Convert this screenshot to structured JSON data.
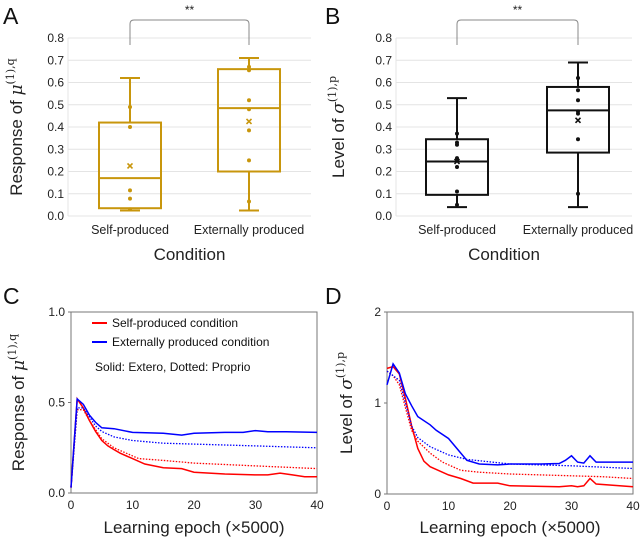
{
  "chart_data": [
    {
      "panel": "A",
      "type": "box",
      "ylabel": "Response of μ(1),q",
      "xlabel": "Condition",
      "ylim": [
        0,
        0.8
      ],
      "yticks": [
        "0.0",
        "0.1",
        "0.2",
        "0.3",
        "0.4",
        "0.5",
        "0.6",
        "0.7",
        "0.8"
      ],
      "grid": true,
      "color": "#c8960c",
      "significance": "**",
      "categories": [
        "Self-produced",
        "Externally produced"
      ],
      "boxes": [
        {
          "whisker_low": 0.025,
          "q1": 0.035,
          "median": 0.17,
          "q3": 0.42,
          "whisker_high": 0.62,
          "mean": 0.225,
          "points": [
            0.49,
            0.4,
            0.115,
            0.078,
            0.03
          ]
        },
        {
          "whisker_low": 0.025,
          "q1": 0.2,
          "median": 0.485,
          "q3": 0.66,
          "whisker_high": 0.71,
          "mean": 0.425,
          "points": [
            0.67,
            0.655,
            0.52,
            0.48,
            0.385,
            0.25,
            0.065
          ]
        }
      ]
    },
    {
      "panel": "B",
      "type": "box",
      "ylabel": "Level of σ(1),p",
      "xlabel": "Condition",
      "ylim": [
        0,
        0.8
      ],
      "yticks": [
        "0.0",
        "0.1",
        "0.2",
        "0.3",
        "0.4",
        "0.5",
        "0.6",
        "0.7",
        "0.8"
      ],
      "grid": true,
      "color": "#111111",
      "significance": "**",
      "categories": [
        "Self-produced",
        "Externally produced"
      ],
      "boxes": [
        {
          "whisker_low": 0.04,
          "q1": 0.095,
          "median": 0.245,
          "q3": 0.345,
          "whisker_high": 0.53,
          "mean": 0.245,
          "points": [
            0.37,
            0.33,
            0.32,
            0.26,
            0.25,
            0.22,
            0.11,
            0.05
          ]
        },
        {
          "whisker_low": 0.04,
          "q1": 0.285,
          "median": 0.475,
          "q3": 0.58,
          "whisker_high": 0.69,
          "mean": 0.43,
          "points": [
            0.62,
            0.565,
            0.52,
            0.47,
            0.46,
            0.345,
            0.1
          ]
        }
      ]
    },
    {
      "panel": "C",
      "type": "line",
      "ylabel": "Response of μ(1),q",
      "xlabel": "Learning epoch (×5000)",
      "xlim": [
        0,
        40
      ],
      "ylim": [
        0,
        1
      ],
      "xticks": [
        "0",
        "10",
        "20",
        "30",
        "40"
      ],
      "yticks": [
        "0.0",
        "0.5",
        "1.0"
      ],
      "legend": {
        "placement": "top-left",
        "entries": [
          {
            "label": "Self-produced condition",
            "color": "#ff0000"
          },
          {
            "label": "Externally produced condition",
            "color": "#0000ff"
          }
        ],
        "note": "Solid: Extero, Dotted: Proprio"
      },
      "series": [
        {
          "color": "#ff0000",
          "style": "solid",
          "points": [
            [
              0,
              0.03
            ],
            [
              1,
              0.52
            ],
            [
              2,
              0.47
            ],
            [
              3,
              0.4
            ],
            [
              4,
              0.34
            ],
            [
              5,
              0.29
            ],
            [
              6,
              0.26
            ],
            [
              7,
              0.24
            ],
            [
              8,
              0.22
            ],
            [
              10,
              0.19
            ],
            [
              12,
              0.16
            ],
            [
              15,
              0.14
            ],
            [
              18,
              0.135
            ],
            [
              20,
              0.115
            ],
            [
              25,
              0.105
            ],
            [
              30,
              0.1
            ],
            [
              32,
              0.1
            ],
            [
              34,
              0.11
            ],
            [
              36,
              0.1
            ],
            [
              38,
              0.09
            ],
            [
              40,
              0.09
            ]
          ]
        },
        {
          "color": "#ff0000",
          "style": "dotted",
          "points": [
            [
              0,
              0.03
            ],
            [
              1,
              0.46
            ],
            [
              2,
              0.46
            ],
            [
              3,
              0.4
            ],
            [
              4,
              0.35
            ],
            [
              5,
              0.3
            ],
            [
              7,
              0.25
            ],
            [
              9,
              0.22
            ],
            [
              11,
              0.19
            ],
            [
              15,
              0.18
            ],
            [
              20,
              0.165
            ],
            [
              30,
              0.15
            ],
            [
              40,
              0.135
            ]
          ]
        },
        {
          "color": "#0000ff",
          "style": "solid",
          "points": [
            [
              0,
              0.03
            ],
            [
              1,
              0.52
            ],
            [
              2,
              0.49
            ],
            [
              3,
              0.43
            ],
            [
              4,
              0.39
            ],
            [
              5,
              0.36
            ],
            [
              7,
              0.355
            ],
            [
              10,
              0.335
            ],
            [
              15,
              0.33
            ],
            [
              18,
              0.32
            ],
            [
              20,
              0.33
            ],
            [
              25,
              0.335
            ],
            [
              28,
              0.335
            ],
            [
              30,
              0.345
            ],
            [
              32,
              0.338
            ],
            [
              35,
              0.338
            ],
            [
              40,
              0.335
            ]
          ]
        },
        {
          "color": "#0000ff",
          "style": "dotted",
          "points": [
            [
              0,
              0.03
            ],
            [
              1,
              0.47
            ],
            [
              2,
              0.47
            ],
            [
              3,
              0.42
            ],
            [
              4,
              0.37
            ],
            [
              5,
              0.34
            ],
            [
              7,
              0.31
            ],
            [
              10,
              0.29
            ],
            [
              15,
              0.275
            ],
            [
              20,
              0.27
            ],
            [
              30,
              0.26
            ],
            [
              40,
              0.25
            ]
          ]
        }
      ]
    },
    {
      "panel": "D",
      "type": "line",
      "ylabel": "Level of σ(1),p",
      "xlabel": "Learning epoch (×5000)",
      "xlim": [
        0,
        40
      ],
      "ylim": [
        0,
        2
      ],
      "xticks": [
        "0",
        "10",
        "20",
        "30",
        "40"
      ],
      "yticks": [
        "0",
        "1",
        "2"
      ],
      "series": [
        {
          "color": "#ff0000",
          "style": "solid",
          "points": [
            [
              0,
              1.38
            ],
            [
              1,
              1.4
            ],
            [
              2,
              1.32
            ],
            [
              3,
              1.05
            ],
            [
              4,
              0.75
            ],
            [
              5,
              0.5
            ],
            [
              6,
              0.36
            ],
            [
              7,
              0.3
            ],
            [
              8,
              0.27
            ],
            [
              10,
              0.21
            ],
            [
              12,
              0.17
            ],
            [
              14,
              0.12
            ],
            [
              18,
              0.12
            ],
            [
              20,
              0.09
            ],
            [
              28,
              0.08
            ],
            [
              30,
              0.09
            ],
            [
              31,
              0.08
            ],
            [
              32,
              0.09
            ],
            [
              33,
              0.17
            ],
            [
              34,
              0.11
            ],
            [
              40,
              0.08
            ]
          ]
        },
        {
          "color": "#ff0000",
          "style": "dotted",
          "points": [
            [
              0,
              1.35
            ],
            [
              1,
              1.3
            ],
            [
              2,
              1.2
            ],
            [
              3,
              0.95
            ],
            [
              4,
              0.7
            ],
            [
              5,
              0.58
            ],
            [
              7,
              0.45
            ],
            [
              9,
              0.35
            ],
            [
              12,
              0.26
            ],
            [
              15,
              0.24
            ],
            [
              20,
              0.22
            ],
            [
              30,
              0.2
            ],
            [
              35,
              0.19
            ],
            [
              40,
              0.17
            ]
          ]
        },
        {
          "color": "#0000ff",
          "style": "solid",
          "points": [
            [
              0,
              1.2
            ],
            [
              1,
              1.43
            ],
            [
              2,
              1.33
            ],
            [
              3,
              1.1
            ],
            [
              4,
              0.97
            ],
            [
              5,
              0.85
            ],
            [
              7,
              0.76
            ],
            [
              8,
              0.7
            ],
            [
              10,
              0.61
            ],
            [
              12,
              0.45
            ],
            [
              13,
              0.37
            ],
            [
              15,
              0.33
            ],
            [
              18,
              0.32
            ],
            [
              20,
              0.33
            ],
            [
              25,
              0.33
            ],
            [
              28,
              0.335
            ],
            [
              29,
              0.37
            ],
            [
              30,
              0.42
            ],
            [
              31,
              0.35
            ],
            [
              32,
              0.34
            ],
            [
              33,
              0.42
            ],
            [
              34,
              0.35
            ],
            [
              40,
              0.35
            ]
          ]
        },
        {
          "color": "#0000ff",
          "style": "dotted",
          "points": [
            [
              0,
              1.35
            ],
            [
              2,
              1.25
            ],
            [
              3,
              1.0
            ],
            [
              4,
              0.75
            ],
            [
              5,
              0.62
            ],
            [
              7,
              0.52
            ],
            [
              10,
              0.43
            ],
            [
              13,
              0.38
            ],
            [
              20,
              0.33
            ],
            [
              30,
              0.31
            ],
            [
              40,
              0.28
            ]
          ]
        }
      ]
    }
  ]
}
